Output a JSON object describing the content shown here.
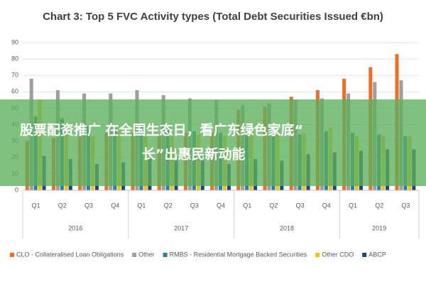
{
  "chart_data": {
    "type": "grouped_bar",
    "title": "Chart 3: Top 5 FVC Activity types (Total Debt Securities Issued €bn)",
    "groups": [
      {
        "label": "2016",
        "categories": [
          "Q1",
          "Q2",
          "Q3",
          "Q4"
        ]
      },
      {
        "label": "2017",
        "categories": [
          "Q1",
          "Q2",
          "Q3",
          "Q4"
        ]
      },
      {
        "label": "2018",
        "categories": [
          "Q1",
          "Q2",
          "Q3",
          "Q4"
        ]
      },
      {
        "label": "2019",
        "categories": [
          "Q1",
          "Q2",
          "Q3"
        ]
      }
    ],
    "series": [
      {
        "name": "CLO - Collateralised Loan Obligations",
        "color": "#e8702a",
        "values": [
          30,
          32,
          33,
          35,
          35,
          33,
          35,
          35,
          49,
          51,
          57,
          61,
          68,
          75,
          83
        ]
      },
      {
        "name": "Other",
        "color": "#9e9e9e",
        "values": [
          68,
          61,
          59,
          59,
          61,
          58,
          56,
          55,
          52,
          53,
          55,
          56,
          59,
          66,
          67
        ]
      },
      {
        "name": "RMBS - Residential Mortgage Backed Securities",
        "color": "#2a7fa8",
        "values": [
          45,
          44,
          39,
          38,
          40,
          38,
          36,
          35,
          34,
          33,
          34,
          36,
          35,
          34,
          33
        ]
      },
      {
        "name": "Other CDO",
        "color": "#f2c21b",
        "values": [
          55,
          34,
          33,
          35,
          33,
          33,
          34,
          33,
          35,
          34,
          35,
          38,
          33,
          33,
          33
        ]
      },
      {
        "name": "ABCP",
        "color": "#23447a",
        "values": [
          21,
          19,
          16,
          17,
          20,
          19,
          20,
          16,
          19,
          18,
          22,
          23,
          24,
          25,
          25
        ]
      }
    ],
    "ylim": [
      0,
      90
    ],
    "yticks": [
      0,
      10,
      20,
      30,
      40,
      50,
      60,
      70,
      80,
      90
    ],
    "grid": true,
    "legend": "bottom"
  },
  "overlay": {
    "lines": [
      "股票配资推广 在全国生态日，看广东绿色家底“",
      "长”出惠民新动能"
    ]
  }
}
